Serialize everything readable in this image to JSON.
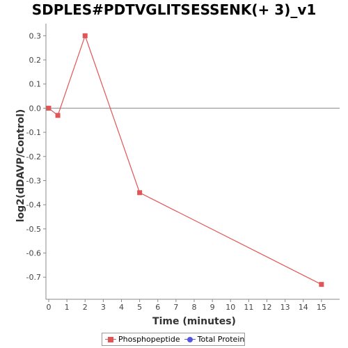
{
  "chart_data": {
    "type": "line",
    "title": "SDPLES#PDTVGLITSESSENK(+ 3)_v1",
    "xlabel": "Time (minutes)",
    "ylabel": "log2(dDAVP/Control)",
    "xlim": [
      0,
      16
    ],
    "ylim": [
      -0.78,
      0.35
    ],
    "x_ticks": [
      0,
      1,
      2,
      3,
      4,
      5,
      6,
      7,
      8,
      9,
      10,
      11,
      12,
      13,
      14,
      15
    ],
    "y_ticks": [
      -0.7,
      -0.6,
      -0.5,
      -0.4,
      -0.3,
      -0.2,
      -0.1,
      0.0,
      0.1,
      0.2,
      0.3
    ],
    "y_tick_labels": [
      "-0.7",
      "-0.6",
      "-0.5",
      "-0.4",
      "-0.3",
      "-0.2",
      "-0.1",
      "0.0",
      "0.1",
      "0.2",
      "0.3"
    ],
    "reference_line_y": 0,
    "grid": false,
    "legend_position": "bottom-center",
    "series": [
      {
        "name": "Phosphopeptide",
        "color": "#e05555",
        "marker": "square",
        "x": [
          0,
          0.5,
          2,
          5,
          15
        ],
        "y": [
          0.0,
          -0.03,
          0.3,
          -0.35,
          -0.73
        ]
      },
      {
        "name": "Total Protein",
        "color": "#5555e0",
        "marker": "circle",
        "x": [],
        "y": []
      }
    ]
  }
}
